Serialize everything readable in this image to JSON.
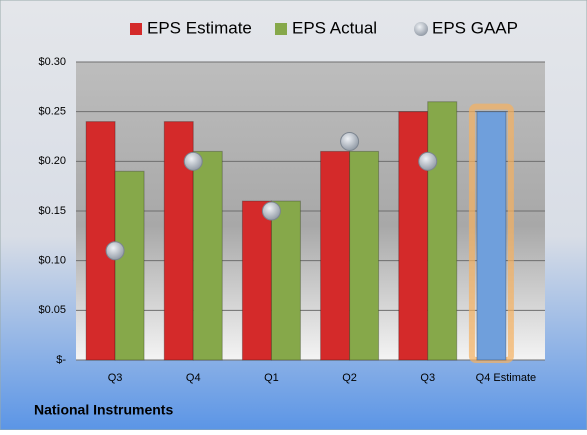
{
  "chart_data": {
    "type": "bar",
    "categories": [
      "Q3",
      "Q4",
      "Q1",
      "Q2",
      "Q3",
      "Q4 Estimate"
    ],
    "series": [
      {
        "name": "EPS Estimate",
        "color": "#d42a2a",
        "values": [
          0.24,
          0.24,
          0.16,
          0.21,
          0.25,
          0.25
        ],
        "highlight": {
          "index": 5,
          "color": "#6f9fdc",
          "glow": "#f5b060"
        }
      },
      {
        "name": "EPS Actual",
        "color": "#86a84a",
        "values": [
          0.19,
          0.21,
          0.16,
          0.21,
          0.26,
          null
        ]
      },
      {
        "name": "EPS GAAP",
        "color": "#a9b2bd",
        "marker": "circle",
        "values": [
          0.11,
          0.2,
          0.15,
          0.22,
          0.2,
          null
        ]
      }
    ],
    "ylim": [
      0,
      0.3
    ],
    "yticks": [
      {
        "value": 0,
        "label": "$-"
      },
      {
        "value": 0.05,
        "label": "$0.05"
      },
      {
        "value": 0.1,
        "label": "$0.10"
      },
      {
        "value": 0.15,
        "label": "$0.15"
      },
      {
        "value": 0.2,
        "label": "$0.20"
      },
      {
        "value": 0.25,
        "label": "$0.25"
      },
      {
        "value": 0.3,
        "label": "$0.30"
      }
    ],
    "grid": true,
    "legend": "top",
    "footer": "National Instruments"
  }
}
